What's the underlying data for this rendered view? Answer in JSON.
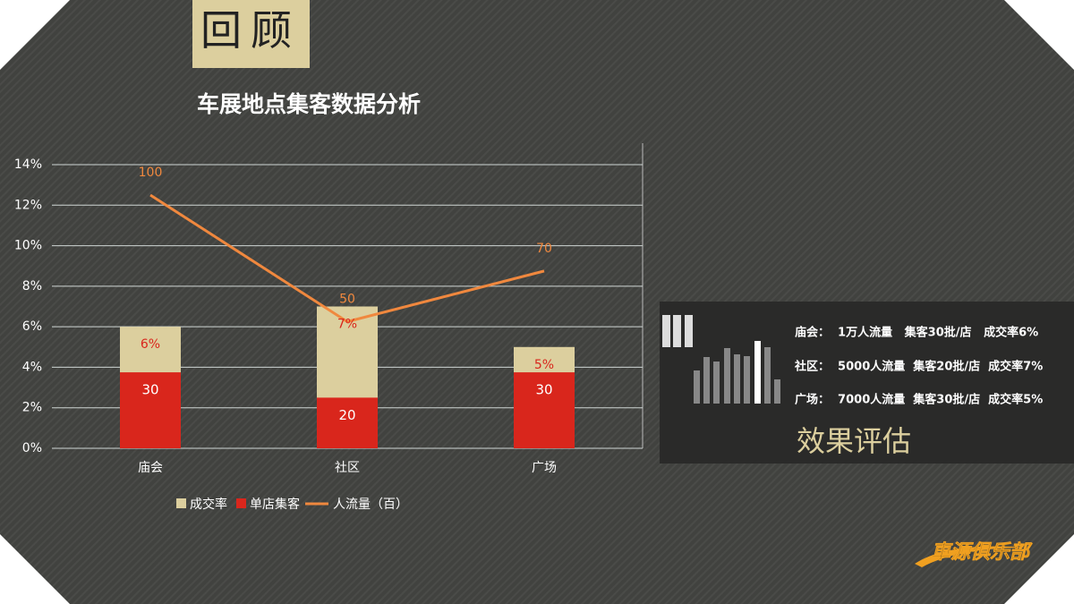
{
  "header": "回顾",
  "chart_data": {
    "type": "bar_line",
    "title": "车展地点集客数据分析",
    "categories": [
      "庙会",
      "社区",
      "广场"
    ],
    "series": [
      {
        "name": "成交率",
        "color": "#dccf9e",
        "kind": "bar",
        "axis": "y",
        "values": [
          6,
          7,
          5
        ],
        "value_labels": [
          "6%",
          "7%",
          "5%"
        ]
      },
      {
        "name": "单店集客",
        "color": "#d9261c",
        "kind": "bar",
        "axis": "y2",
        "values": [
          30,
          20,
          30
        ]
      },
      {
        "name": "人流量（百）",
        "color": "#f0883e",
        "kind": "line",
        "axis": "y2",
        "values": [
          100,
          50,
          70
        ]
      }
    ],
    "ylim": [
      0,
      14
    ],
    "yticks": [
      {
        "value": 0,
        "label": "0%"
      },
      {
        "value": 2,
        "label": "2%"
      },
      {
        "value": 4,
        "label": "4%"
      },
      {
        "value": 6,
        "label": "6%"
      },
      {
        "value": 8,
        "label": "8%"
      },
      {
        "value": 10,
        "label": "10%"
      },
      {
        "value": 12,
        "label": "12%"
      },
      {
        "value": 14,
        "label": "14%"
      }
    ],
    "y2lim": [
      0,
      112
    ],
    "grid": true,
    "legend": "bottom"
  },
  "panel": {
    "lines": [
      "庙会：  1万人流量   集客30批/店   成交率6%",
      "社区：  5000人流量  集客20批/店  成交率7%",
      "广场：  7000人流量  集客30批/店  成交率5%"
    ],
    "heading": "效果评估"
  },
  "logo": "車源俱乐部"
}
